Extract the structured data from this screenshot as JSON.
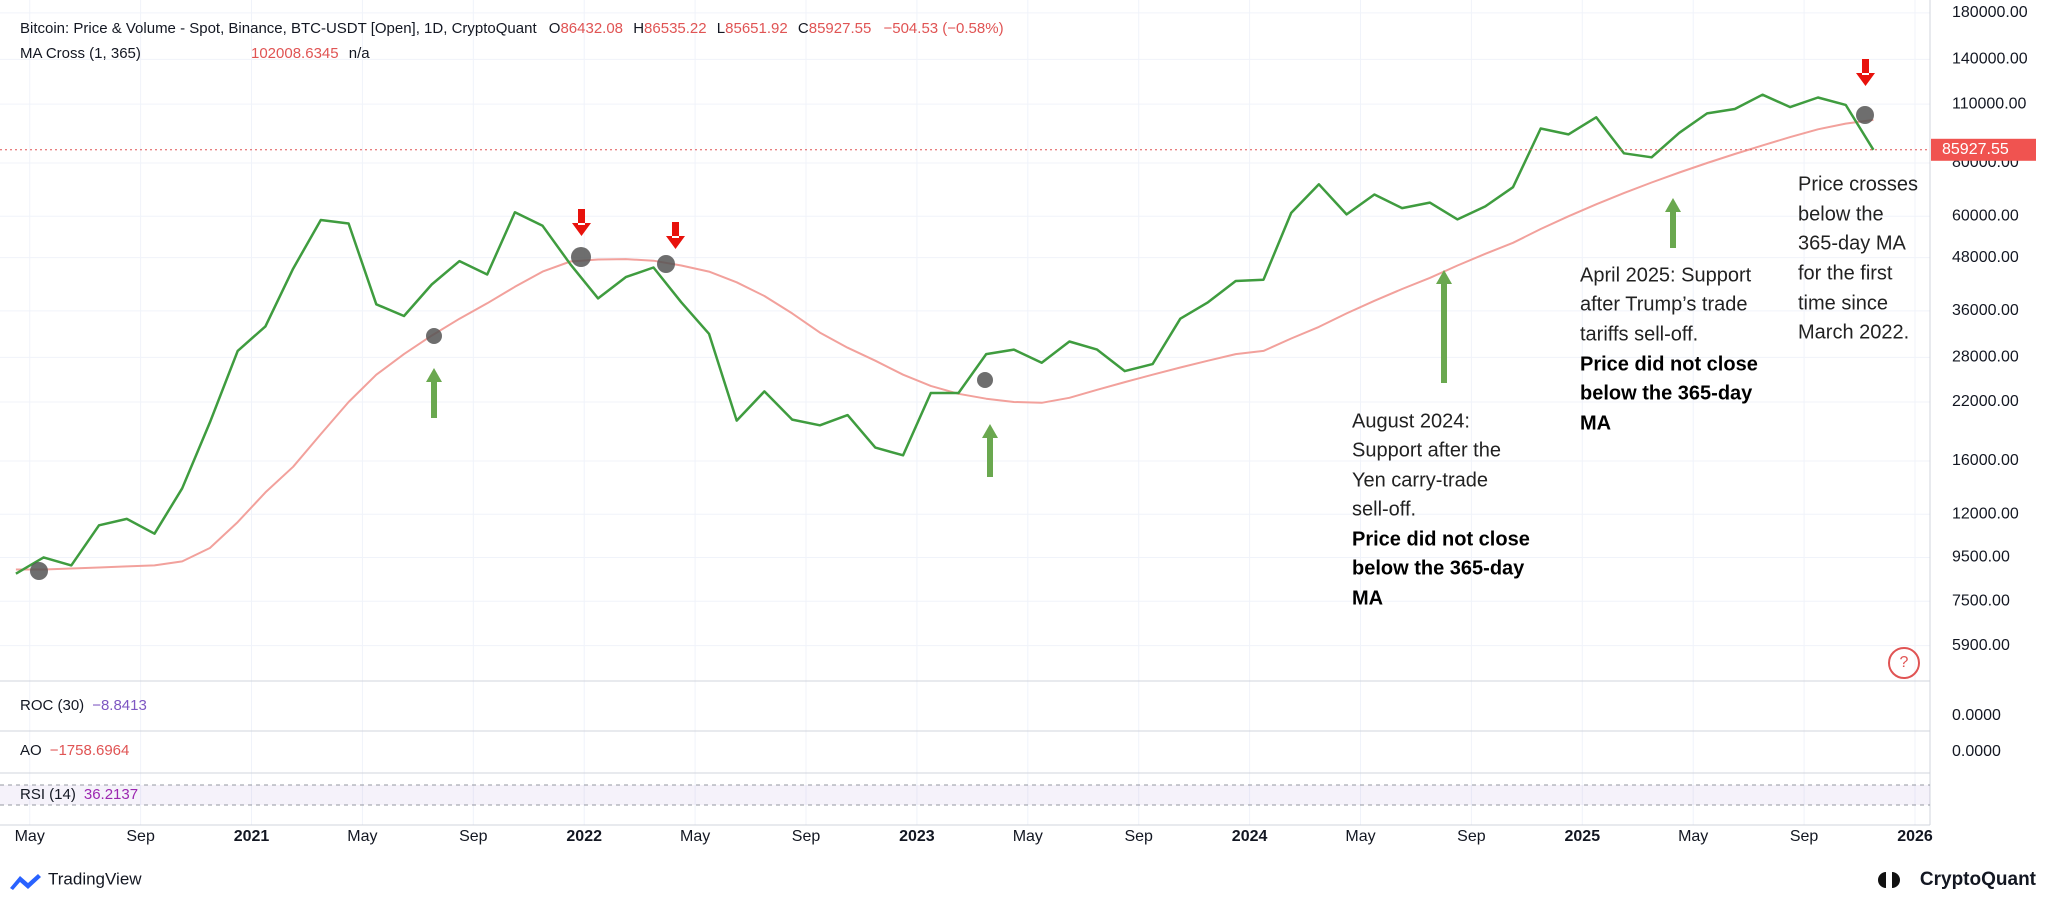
{
  "chart_data": {
    "type": "line",
    "title": "Bitcoin: Price & Volume - Spot, Binance, BTC-USDT [Open], 1D, CryptoQuant",
    "ohlc": [
      {
        "label": "O",
        "value": 86432.08
      },
      {
        "label": "H",
        "value": 86535.22
      },
      {
        "label": "L",
        "value": 85651.92
      },
      {
        "label": "C",
        "value": 85927.55
      }
    ],
    "change": "−504.53 (−0.58%)",
    "ma_value": 102008.6345,
    "ma_extra": "n/a",
    "last_price": 85927.55,
    "log_scale": true,
    "grid": true,
    "x": [
      "2020-04",
      "2020-05",
      "2020-06",
      "2020-07",
      "2020-08",
      "2020-09",
      "2020-10",
      "2020-11",
      "2020-12",
      "2021-01",
      "2021-02",
      "2021-03",
      "2021-04",
      "2021-05",
      "2021-06",
      "2021-07",
      "2021-08",
      "2021-09",
      "2021-10",
      "2021-11",
      "2021-12",
      "2022-01",
      "2022-02",
      "2022-03",
      "2022-04",
      "2022-05",
      "2022-06",
      "2022-07",
      "2022-08",
      "2022-09",
      "2022-10",
      "2022-11",
      "2022-12",
      "2023-01",
      "2023-02",
      "2023-03",
      "2023-04",
      "2023-05",
      "2023-06",
      "2023-07",
      "2023-08",
      "2023-09",
      "2023-10",
      "2023-11",
      "2023-12",
      "2024-01",
      "2024-02",
      "2024-03",
      "2024-04",
      "2024-05",
      "2024-06",
      "2024-07",
      "2024-08",
      "2024-09",
      "2024-10",
      "2024-11",
      "2024-12",
      "2025-01",
      "2025-02",
      "2025-03",
      "2025-04",
      "2025-05",
      "2025-06",
      "2025-07",
      "2025-08",
      "2025-09",
      "2025-10",
      "2025-11"
    ],
    "series": [
      {
        "color": "#3f9c3f",
        "values": [
          8700,
          9500,
          9100,
          11300,
          11700,
          10800,
          13800,
          19700,
          29000,
          33100,
          45200,
          58800,
          57700,
          37300,
          35000,
          41500,
          47100,
          43800,
          61300,
          57000,
          46300,
          38500,
          43200,
          45500,
          37700,
          31800,
          19900,
          23300,
          20000,
          19400,
          20500,
          17200,
          16500,
          23100,
          23100,
          28500,
          29200,
          27200,
          30500,
          29200,
          26000,
          27000,
          34500,
          37700,
          42300,
          42600,
          61100,
          71300,
          60600,
          67500,
          62700,
          64600,
          59000,
          63300,
          70200,
          96400,
          93400,
          102400,
          84300,
          82500,
          94200,
          104600,
          107100,
          115700,
          108200,
          114000,
          109500,
          85900
        ]
      },
      {
        "name": "MA Cross (1, 365)",
        "color": "#f2a19c",
        "values": [
          8900,
          8900,
          8950,
          9000,
          9050,
          9100,
          9300,
          10000,
          11500,
          13500,
          15500,
          18500,
          22000,
          25500,
          28500,
          31500,
          34500,
          37500,
          41000,
          44500,
          47000,
          47500,
          47600,
          47200,
          46000,
          44500,
          42000,
          39000,
          35500,
          32000,
          29500,
          27500,
          25500,
          24000,
          23000,
          22400,
          22000,
          21900,
          22500,
          23500,
          24500,
          25500,
          26500,
          27500,
          28500,
          29000,
          31000,
          33000,
          35500,
          38000,
          40500,
          43000,
          46000,
          49000,
          52000,
          56000,
          60000,
          64000,
          68000,
          72000,
          76000,
          80000,
          84000,
          88000,
          92000,
          96000,
          99000,
          101000
        ]
      }
    ],
    "xlim": [
      "2020-04",
      "2026-01"
    ],
    "xticks": [
      {
        "value": "2020-05",
        "label": "May"
      },
      {
        "value": "2020-09",
        "label": "Sep"
      },
      {
        "value": "2021-01",
        "label": "2021"
      },
      {
        "value": "2021-05",
        "label": "May"
      },
      {
        "value": "2021-09",
        "label": "Sep"
      },
      {
        "value": "2022-01",
        "label": "2022"
      },
      {
        "value": "2022-05",
        "label": "May"
      },
      {
        "value": "2022-09",
        "label": "Sep"
      },
      {
        "value": "2023-01",
        "label": "2023"
      },
      {
        "value": "2023-05",
        "label": "May"
      },
      {
        "value": "2023-09",
        "label": "Sep"
      },
      {
        "value": "2024-01",
        "label": "2024"
      },
      {
        "value": "2024-05",
        "label": "May"
      },
      {
        "value": "2024-09",
        "label": "Sep"
      },
      {
        "value": "2025-01",
        "label": "2025"
      },
      {
        "value": "2025-05",
        "label": "May"
      },
      {
        "value": "2025-09",
        "label": "Sep"
      },
      {
        "value": "2026-01",
        "label": "2026"
      }
    ],
    "ylim": [
      4900,
      193000
    ],
    "yticks": [
      {
        "value": 180000,
        "label": "180000.00"
      },
      {
        "value": 140000,
        "label": "140000.00"
      },
      {
        "value": 110000,
        "label": "110000.00"
      },
      {
        "value": 80000,
        "label": "80000.00"
      },
      {
        "value": 60000,
        "label": "60000.00"
      },
      {
        "value": 48000,
        "label": "48000.00"
      },
      {
        "value": 36000,
        "label": "36000.00"
      },
      {
        "value": 28000,
        "label": "28000.00"
      },
      {
        "value": 22000,
        "label": "22000.00"
      },
      {
        "value": 16000,
        "label": "16000.00"
      },
      {
        "value": 12000,
        "label": "12000.00"
      },
      {
        "value": 9500,
        "label": "9500.00"
      },
      {
        "value": 7500,
        "label": "7500.00"
      },
      {
        "value": 5900,
        "label": "5900.00"
      }
    ],
    "indicators": [
      {
        "name": "ROC (30)",
        "value_label": "−8.8413",
        "axis_label": "0.0000"
      },
      {
        "name": "AO",
        "value_label": "−1758.6964",
        "axis_label": "0.0000"
      },
      {
        "name": "RSI (14)",
        "value_label": "36.2137"
      }
    ],
    "annotations": [
      {
        "text": [
          "August 2024:",
          "Support after the",
          "Yen carry-trade",
          "sell-off."
        ],
        "bold": [
          "Price did not close",
          "below the 365-day",
          "MA"
        ]
      },
      {
        "text": [
          "April 2025: Support",
          "after Trump’s trade",
          "tariffs sell-off."
        ],
        "bold": [
          "Price did not close",
          "below the 365-day",
          "MA"
        ]
      },
      {
        "text": [
          "Price crosses",
          "below the",
          "365-day MA",
          "for the first",
          "time since",
          "March 2022."
        ]
      }
    ],
    "footer": {
      "left": "TradingView",
      "right": "CryptoQuant"
    }
  }
}
